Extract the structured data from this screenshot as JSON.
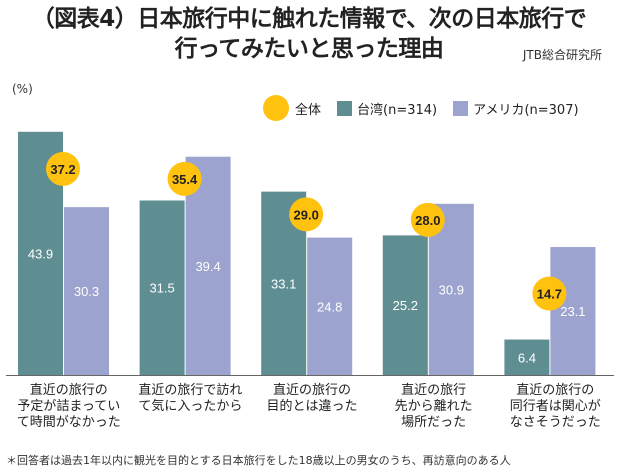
{
  "title_lines": [
    "（図表4）日本旅行中に触れた情報で、次の日本旅行で",
    "行ってみたいと思った理由"
  ],
  "source": "JTB総合研究所",
  "unit": "(%)",
  "footnote": "＊回答者は過去1年以内に観光を目的とする日本旅行をした18歳以上の男女のうち、再訪意向のある人",
  "colors": {
    "overall": "#FFC20E",
    "taiwan": "#5E8E92",
    "america": "#9CA3CF"
  },
  "chart_data": {
    "type": "bar",
    "categories": [
      [
        "直近の旅行の",
        "予定が詰まってい",
        "て時間がなかった"
      ],
      [
        "直近の旅行で訪れ",
        "て気に入ったから"
      ],
      [
        "直近の旅行の",
        "目的とは違った"
      ],
      [
        "直近の旅行",
        "先から離れた",
        "場所だった"
      ],
      [
        "直近の旅行の",
        "同行者は関心が",
        "なさそうだった"
      ]
    ],
    "series": [
      {
        "name": "全体",
        "marker": "circle",
        "values": [
          37.2,
          35.4,
          29.0,
          28.0,
          14.7
        ]
      },
      {
        "name": "台湾(n=314)",
        "marker": "bar",
        "values": [
          43.9,
          31.5,
          33.1,
          25.2,
          6.4
        ]
      },
      {
        "name": "アメリカ(n=307)",
        "marker": "bar",
        "values": [
          30.3,
          39.4,
          24.8,
          30.9,
          23.1
        ]
      }
    ],
    "ylim": [
      0,
      50
    ],
    "grid": false,
    "legend": "top-right"
  }
}
